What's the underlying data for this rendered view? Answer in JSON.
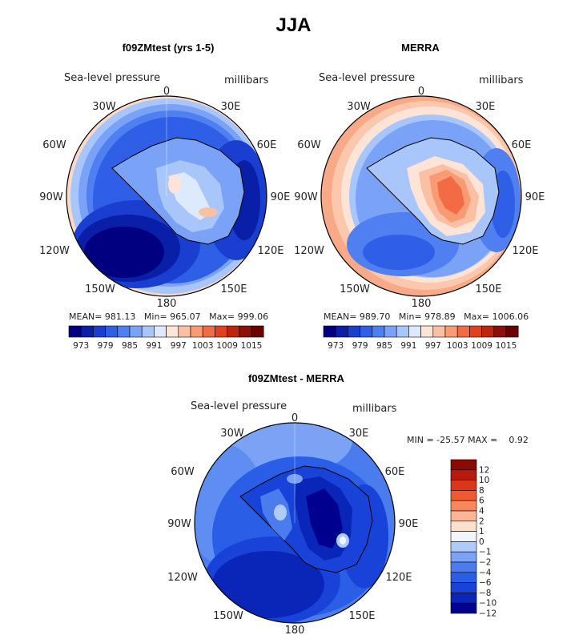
{
  "figure": {
    "title": "JJA"
  },
  "colors": {
    "levels": [
      "#000080",
      "#0a1fa8",
      "#1a3fd0",
      "#2f5fe6",
      "#4f7ff0",
      "#7aa3f7",
      "#a9c6fb",
      "#dde9fd",
      "#fde4d6",
      "#fbbfa3",
      "#f89a73",
      "#f26b45",
      "#e0421f",
      "#bf2410",
      "#8f1008",
      "#6b0000"
    ],
    "diff_levels": [
      "#00008f",
      "#0a26b8",
      "#1842d8",
      "#2a5ee6",
      "#4a7cee",
      "#7ba2f5",
      "#b0cbfa",
      "#f2f5fb",
      "#fde0cc",
      "#fbb595",
      "#f8885c",
      "#f05a30",
      "#d9361a",
      "#b71a0c",
      "#8b0a04"
    ]
  },
  "panels": [
    {
      "title": "f09ZMtest (yrs 1-5)",
      "left_label": "Sea-level pressure",
      "right_label": "millibars",
      "lon_labels": [
        "0",
        "30E",
        "60E",
        "90E",
        "120E",
        "150E",
        "180",
        "150W",
        "120W",
        "90W",
        "60W",
        "30W"
      ],
      "stats": {
        "mean_label": "MEAN=",
        "mean": "981.13",
        "min_label": "Min=",
        "min": "965.07",
        "max_label": "Max=",
        "max": "999.06"
      },
      "colorbar_ticks": [
        "973",
        "979",
        "985",
        "991",
        "997",
        "1003",
        "1009",
        "1015"
      ]
    },
    {
      "title": "MERRA",
      "left_label": "Sea-level pressure",
      "right_label": "millibars",
      "lon_labels": [
        "0",
        "30E",
        "60E",
        "90E",
        "120E",
        "150E",
        "180",
        "150W",
        "120W",
        "90W",
        "60W",
        "30W"
      ],
      "stats": {
        "mean_label": "MEAN=",
        "mean": "989.70",
        "min_label": "Min=",
        "min": "978.89",
        "max_label": "Max=",
        "max": "1006.06"
      },
      "colorbar_ticks": [
        "973",
        "979",
        "985",
        "991",
        "997",
        "1003",
        "1009",
        "1015"
      ]
    },
    {
      "title": "f09ZMtest - MERRA",
      "left_label": "Sea-level pressure",
      "right_label": "millibars",
      "lon_labels": [
        "0",
        "30E",
        "60E",
        "90E",
        "120E",
        "150E",
        "180",
        "150W",
        "120W",
        "90W",
        "60W",
        "30W"
      ],
      "stats_line": "MIN = -25.57 MAX =    0.92",
      "colorbar_ticks": [
        "12",
        "10",
        "8",
        "6",
        "4",
        "2",
        "1",
        "0",
        "−1",
        "−2",
        "−4",
        "−6",
        "−8",
        "−10",
        "−12"
      ]
    }
  ]
}
